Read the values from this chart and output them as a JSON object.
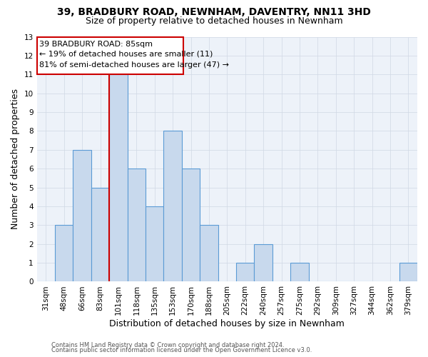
{
  "title1": "39, BRADBURY ROAD, NEWNHAM, DAVENTRY, NN11 3HD",
  "title2": "Size of property relative to detached houses in Newnham",
  "xlabel": "Distribution of detached houses by size in Newnham",
  "ylabel": "Number of detached properties",
  "categories": [
    "31sqm",
    "48sqm",
    "66sqm",
    "83sqm",
    "101sqm",
    "118sqm",
    "135sqm",
    "153sqm",
    "170sqm",
    "188sqm",
    "205sqm",
    "222sqm",
    "240sqm",
    "257sqm",
    "275sqm",
    "292sqm",
    "309sqm",
    "327sqm",
    "344sqm",
    "362sqm",
    "379sqm"
  ],
  "values": [
    0,
    3,
    7,
    5,
    11,
    6,
    4,
    8,
    6,
    3,
    0,
    1,
    2,
    0,
    1,
    0,
    0,
    0,
    0,
    0,
    1
  ],
  "bar_color": "#c8d9ed",
  "bar_edge_color": "#5b9bd5",
  "annotation_line1": "39 BRADBURY ROAD: 85sqm",
  "annotation_line2": "← 19% of detached houses are smaller (11)",
  "annotation_line3": "81% of semi-detached houses are larger (47) →",
  "annotation_box_color": "#ffffff",
  "annotation_box_edge": "#cc0000",
  "divider_line_color": "#cc0000",
  "ylim": [
    0,
    13
  ],
  "yticks": [
    0,
    1,
    2,
    3,
    4,
    5,
    6,
    7,
    8,
    9,
    10,
    11,
    12,
    13
  ],
  "grid_color": "#d0d8e4",
  "bg_color": "#edf2f9",
  "footer1": "Contains HM Land Registry data © Crown copyright and database right 2024.",
  "footer2": "Contains public sector information licensed under the Open Government Licence v3.0.",
  "title_fontsize": 10,
  "subtitle_fontsize": 9,
  "axis_label_fontsize": 9,
  "tick_fontsize": 7.5
}
